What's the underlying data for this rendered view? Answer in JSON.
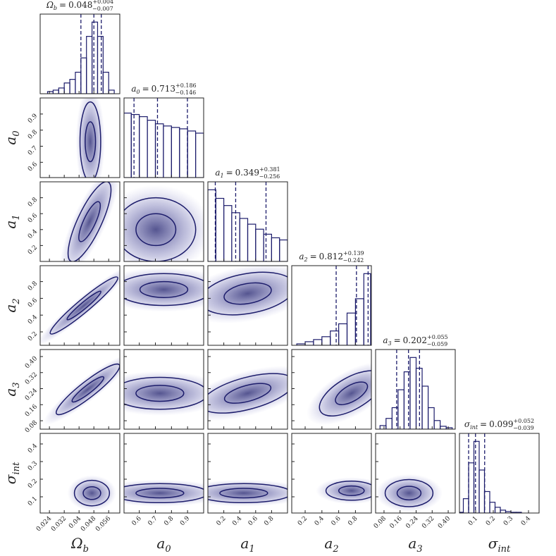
{
  "chart_data": {
    "type": "corner",
    "separator": "=",
    "color": "#1c1c6b",
    "params": [
      {
        "symbol": "Ω",
        "sub": "b",
        "median": 0.048,
        "plus": 0.004,
        "plus_label": "+0.004",
        "minus": -0.007,
        "minus_label": "−0.007",
        "lim": [
          0.019,
          0.062
        ],
        "ticks": [
          0.024,
          0.032,
          0.04,
          0.048,
          0.056
        ],
        "bins": [
          0.023,
          0.026,
          0.029,
          0.032,
          0.035,
          0.038,
          0.041,
          0.044,
          0.047,
          0.05,
          0.053,
          0.056,
          0.059
        ],
        "counts": [
          0.03,
          0.05,
          0.08,
          0.15,
          0.2,
          0.3,
          0.5,
          0.8,
          1.0,
          0.8,
          0.3,
          0.05
        ]
      },
      {
        "symbol": "a",
        "sub": "0",
        "median": 0.713,
        "plus": 0.186,
        "plus_label": "+0.186",
        "minus": -0.146,
        "minus_label": "−0.146",
        "lim": [
          0.505,
          1.0
        ],
        "ticks": [
          0.6,
          0.7,
          0.8,
          0.9
        ],
        "bins": [
          0.5,
          0.55,
          0.6,
          0.65,
          0.7,
          0.75,
          0.8,
          0.85,
          0.9,
          0.95,
          1.0
        ],
        "counts": [
          0.9,
          0.88,
          0.85,
          0.8,
          0.75,
          0.72,
          0.7,
          0.68,
          0.65,
          0.62
        ]
      },
      {
        "symbol": "a",
        "sub": "1",
        "median": 0.349,
        "plus": 0.381,
        "plus_label": "+0.381",
        "minus": -0.256,
        "minus_label": "−0.256",
        "lim": [
          0.0,
          1.0
        ],
        "ticks": [
          0.2,
          0.4,
          0.6,
          0.8
        ],
        "bins": [
          0.0,
          0.1,
          0.2,
          0.3,
          0.4,
          0.5,
          0.6,
          0.7,
          0.8,
          0.9,
          1.0
        ],
        "counts": [
          1.0,
          0.88,
          0.78,
          0.68,
          0.6,
          0.52,
          0.45,
          0.38,
          0.33,
          0.3
        ]
      },
      {
        "symbol": "a",
        "sub": "2",
        "median": 0.812,
        "plus": 0.139,
        "plus_label": "+0.139",
        "minus": -0.242,
        "minus_label": "−0.242",
        "lim": [
          0.04,
          0.99
        ],
        "ticks": [
          0.2,
          0.4,
          0.6,
          0.8
        ],
        "bins": [
          0.1,
          0.2,
          0.3,
          0.4,
          0.5,
          0.6,
          0.7,
          0.8,
          0.9,
          0.98
        ],
        "counts": [
          0.02,
          0.05,
          0.08,
          0.12,
          0.2,
          0.3,
          0.45,
          0.65,
          1.0
        ]
      },
      {
        "symbol": "a",
        "sub": "3",
        "median": 0.202,
        "plus": 0.055,
        "plus_label": "+0.055",
        "minus": -0.059,
        "minus_label": "−0.059",
        "lim": [
          0.038,
          0.435
        ],
        "ticks": [
          0.08,
          0.16,
          0.24,
          0.32,
          {
            "value": 0.4,
            "label": "0.40"
          }
        ],
        "bins": [
          0.06,
          0.09,
          0.12,
          0.15,
          0.18,
          0.21,
          0.24,
          0.27,
          0.3,
          0.33,
          0.36,
          0.39,
          0.42
        ],
        "counts": [
          0.05,
          0.15,
          0.3,
          0.55,
          0.8,
          1.0,
          0.85,
          0.6,
          0.3,
          0.12,
          0.04,
          0.02
        ]
      },
      {
        "symbol": "σ",
        "sub": "int",
        "median": 0.099,
        "plus": 0.052,
        "plus_label": "+0.052",
        "minus": -0.039,
        "minus_label": "−0.039",
        "lim": [
          0.008,
          0.46
        ],
        "ticks": [
          0.1,
          0.2,
          0.3,
          0.4
        ],
        "bins": [
          0.0,
          0.03,
          0.06,
          0.09,
          0.12,
          0.15,
          0.18,
          0.21,
          0.24,
          0.27,
          0.3,
          0.33,
          0.36,
          0.39,
          0.42,
          0.45
        ],
        "counts": [
          0.01,
          0.2,
          0.7,
          1.0,
          0.6,
          0.3,
          0.15,
          0.08,
          0.04,
          0.02,
          0.01,
          0.01,
          0,
          0,
          0
        ]
      }
    ]
  }
}
